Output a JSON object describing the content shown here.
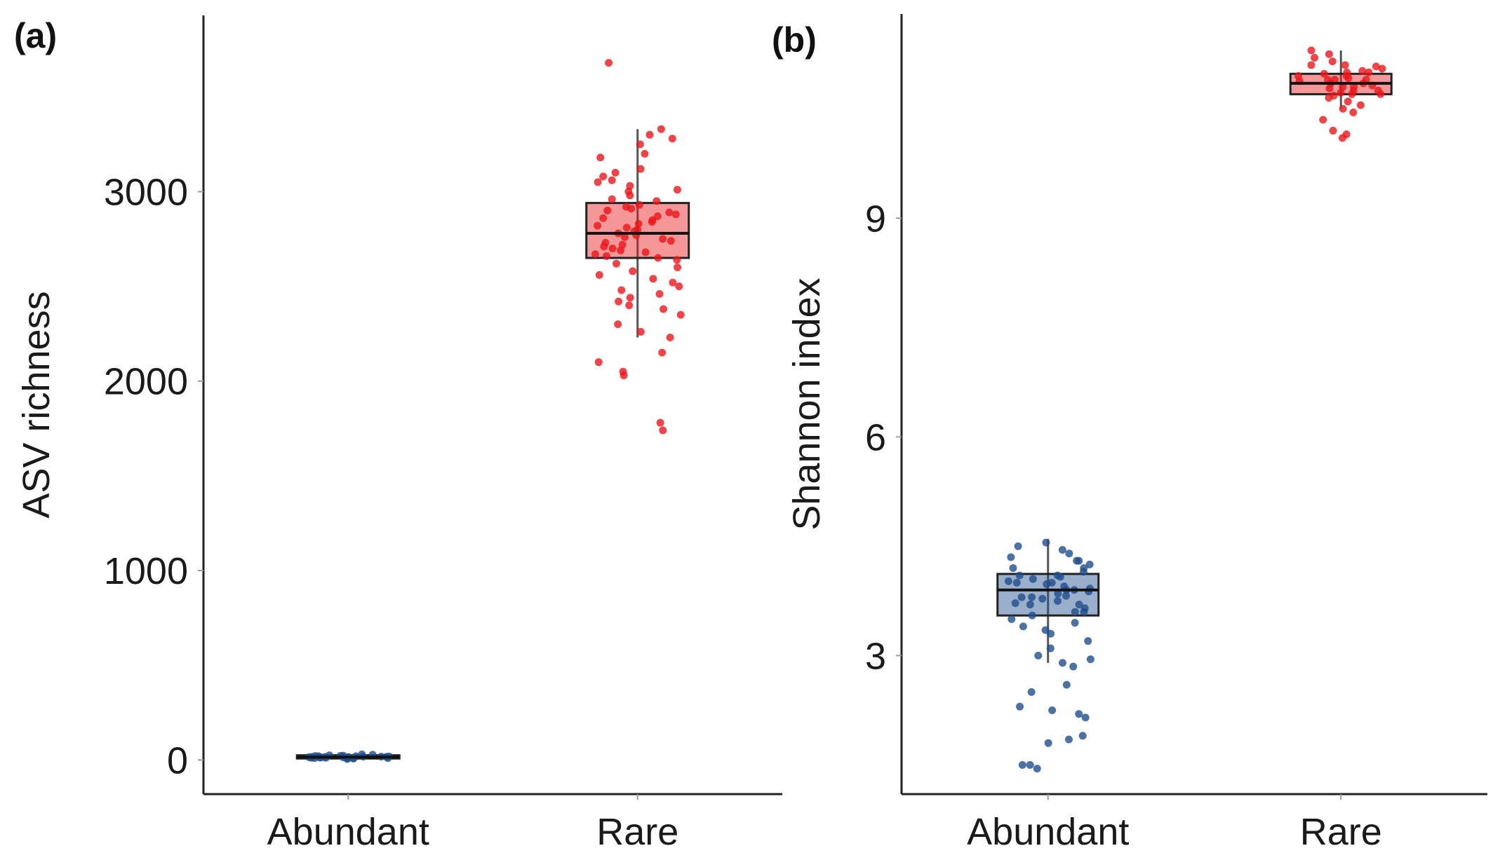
{
  "colors": {
    "abundant": "#1f4e8c",
    "rare": "#e8161b",
    "axis": "#222222"
  },
  "chart_data": [
    {
      "type": "box",
      "panel_label": "(a)",
      "title": "",
      "xlabel": "",
      "ylabel": "ASV richness",
      "ylim": [
        -180,
        3930
      ],
      "yticks": [
        0,
        1000,
        2000,
        3000
      ],
      "categories": [
        "Abundant",
        "Rare"
      ],
      "boxes": [
        {
          "name": "Abundant",
          "q1": 8,
          "median": 15,
          "q3": 25,
          "whisker_low": 0,
          "whisker_high": 35,
          "points": [
            5,
            8,
            10,
            12,
            14,
            15,
            16,
            18,
            20,
            22,
            25,
            28,
            30,
            12,
            14,
            16,
            18,
            20,
            9,
            11,
            13,
            15,
            17,
            19,
            21,
            23,
            10,
            14
          ]
        },
        {
          "name": "Rare",
          "q1": 2650,
          "median": 2780,
          "q3": 2940,
          "whisker_low": 2230,
          "whisker_high": 3330,
          "points": [
            3680,
            3330,
            3300,
            3280,
            3250,
            3200,
            3180,
            3120,
            3100,
            3080,
            3060,
            3050,
            3030,
            3010,
            3000,
            2980,
            2960,
            2950,
            2930,
            2920,
            2910,
            2900,
            2890,
            2880,
            2870,
            2860,
            2850,
            2840,
            2830,
            2820,
            2810,
            2800,
            2790,
            2780,
            2770,
            2760,
            2750,
            2740,
            2730,
            2720,
            2710,
            2700,
            2690,
            2680,
            2670,
            2660,
            2650,
            2640,
            2620,
            2600,
            2580,
            2560,
            2540,
            2520,
            2500,
            2480,
            2460,
            2440,
            2420,
            2400,
            2380,
            2350,
            2300,
            2260,
            2230,
            2150,
            2100,
            2050,
            2030,
            1780,
            1740
          ]
        }
      ]
    },
    {
      "type": "box",
      "panel_label": "(b)",
      "title": "",
      "xlabel": "",
      "ylabel": "Shannon  index",
      "ylim": [
        1.1,
        11.8
      ],
      "yticks": [
        3,
        6,
        9
      ],
      "categories": [
        "Abundant",
        "Rare"
      ],
      "boxes": [
        {
          "name": "Abundant",
          "q1": 3.55,
          "median": 3.9,
          "q3": 4.12,
          "whisker_low": 2.9,
          "whisker_high": 4.6,
          "points": [
            4.55,
            4.5,
            4.45,
            4.4,
            4.35,
            4.3,
            4.25,
            4.2,
            4.15,
            4.1,
            4.08,
            4.05,
            4.02,
            4.0,
            3.98,
            3.95,
            3.92,
            3.9,
            3.88,
            3.85,
            3.82,
            3.8,
            3.78,
            3.75,
            3.72,
            3.7,
            3.65,
            3.6,
            3.55,
            3.5,
            3.45,
            3.4,
            3.35,
            3.3,
            3.2,
            3.1,
            3.0,
            2.95,
            2.9,
            2.85,
            2.6,
            2.5,
            2.3,
            2.25,
            2.2,
            2.15,
            1.9,
            1.85,
            1.8,
            1.5,
            1.45,
            1.5,
            4.3,
            4.1,
            3.9,
            3.7,
            4.0,
            3.8,
            4.2,
            3.6
          ]
        },
        {
          "name": "Rare",
          "q1": 10.7,
          "median": 10.85,
          "q3": 10.98,
          "whisker_low": 10.5,
          "whisker_high": 11.3,
          "points": [
            11.3,
            11.25,
            11.2,
            11.15,
            11.1,
            11.08,
            11.05,
            11.02,
            11.0,
            10.98,
            10.95,
            10.92,
            10.9,
            10.88,
            10.85,
            10.82,
            10.8,
            10.78,
            10.75,
            10.72,
            10.7,
            10.68,
            10.65,
            10.6,
            10.55,
            10.5,
            10.45,
            10.35,
            10.2,
            10.15,
            10.1,
            10.9,
            10.85,
            11.0,
            10.95,
            10.8,
            10.7,
            11.1,
            10.75,
            10.9
          ]
        }
      ]
    }
  ]
}
